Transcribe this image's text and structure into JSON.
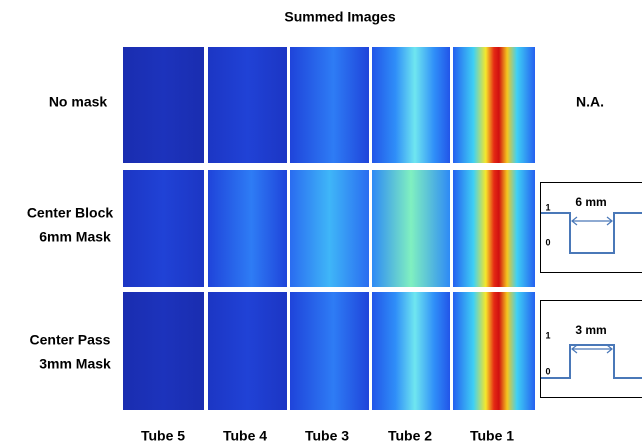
{
  "title": "Summed Images",
  "rows": [
    {
      "label": [
        "No mask"
      ],
      "mask": {
        "text": "N.A."
      }
    },
    {
      "label": [
        "Center Block",
        "6mm Mask"
      ],
      "mask": {
        "width": "6 mm",
        "high": "1",
        "low": "0"
      }
    },
    {
      "label": [
        "Center Pass",
        "3mm Mask"
      ],
      "mask": {
        "width": "3 mm",
        "high": "1",
        "low": "0"
      }
    }
  ],
  "columns": [
    "Tube 5",
    "Tube 4",
    "Tube 3",
    "Tube 2",
    "Tube 1"
  ]
}
